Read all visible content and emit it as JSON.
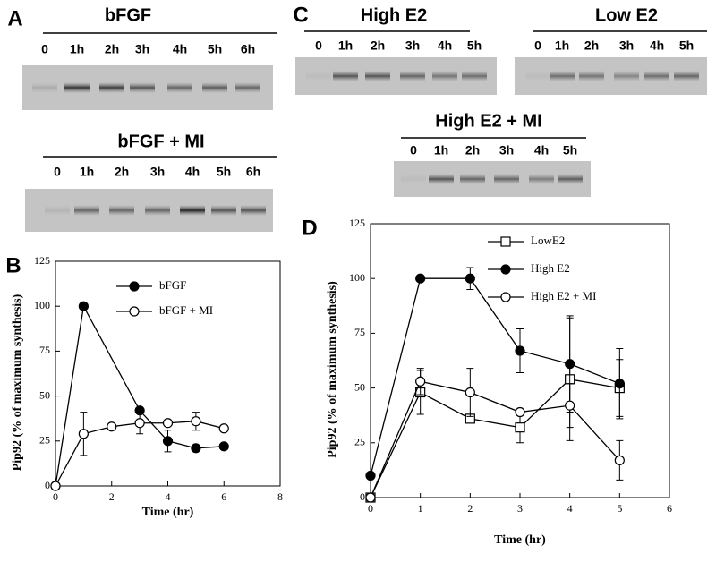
{
  "blots": [
    {
      "panel": "A",
      "groups": [
        {
          "title": "bFGF",
          "lanes": [
            "0",
            "1h",
            "2h",
            "3h",
            "4h",
            "5h",
            "6h"
          ]
        },
        {
          "title": "bFGF + MI",
          "lanes": [
            "0",
            "1h",
            "2h",
            "3h",
            "4h",
            "5h",
            "6h"
          ]
        }
      ]
    },
    {
      "panel": "C",
      "groups": [
        {
          "title": "High E2",
          "lanes": [
            "0",
            "1h",
            "2h",
            "3h",
            "4h",
            "5h"
          ]
        },
        {
          "title": "Low E2",
          "lanes": [
            "0",
            "1h",
            "2h",
            "3h",
            "4h",
            "5h"
          ]
        },
        {
          "title": "High E2 + MI",
          "lanes": [
            "0",
            "1h",
            "2h",
            "3h",
            "4h",
            "5h"
          ]
        }
      ]
    }
  ],
  "chart_data": [
    {
      "type": "line",
      "panel": "B",
      "x_label": "Time (hr)",
      "y_label": "Pip92 (% of maximum synthesis)",
      "xlim": [
        0,
        8
      ],
      "xticks": [
        0,
        2,
        4,
        6,
        8
      ],
      "ylim": [
        0,
        125
      ],
      "yticks": [
        0,
        25,
        50,
        75,
        100,
        125
      ],
      "legend": "upper right",
      "series": [
        {
          "name": "bFGF",
          "color": "#000000",
          "marker": "circle-filled",
          "x": [
            0,
            1,
            3,
            4,
            5,
            6
          ],
          "values": [
            0,
            100,
            42,
            25,
            21,
            22
          ],
          "errors": [
            null,
            null,
            null,
            6,
            null,
            null
          ]
        },
        {
          "name": "bFGF + MI",
          "color": "#000000",
          "marker": "circle-open",
          "x": [
            0,
            1,
            2,
            3,
            4,
            5,
            6
          ],
          "values": [
            0,
            29,
            33,
            35,
            35,
            36,
            32
          ],
          "errors": [
            null,
            12,
            null,
            6,
            null,
            5,
            null
          ]
        }
      ]
    },
    {
      "type": "line",
      "panel": "D",
      "x_label": "Time (hr)",
      "y_label": "Pip92 (% of maximum synthesis)",
      "xlim": [
        0,
        6
      ],
      "xticks": [
        0,
        1,
        2,
        3,
        4,
        5,
        6
      ],
      "ylim": [
        0,
        125
      ],
      "yticks": [
        0,
        25,
        50,
        75,
        100,
        125
      ],
      "legend": "upper right",
      "series": [
        {
          "name": "LowE2",
          "color": "#000000",
          "marker": "square-open",
          "x": [
            0,
            1,
            2,
            3,
            4,
            5
          ],
          "values": [
            0,
            48,
            36,
            32,
            54,
            50
          ],
          "errors": [
            null,
            10,
            null,
            7,
            28,
            13
          ]
        },
        {
          "name": "High E2",
          "color": "#000000",
          "marker": "circle-filled",
          "x": [
            0,
            1,
            2,
            3,
            4,
            5
          ],
          "values": [
            10,
            100,
            100,
            67,
            61,
            52
          ],
          "errors": [
            null,
            null,
            5,
            10,
            22,
            16
          ]
        },
        {
          "name": "High E2 + MI",
          "color": "#000000",
          "marker": "circle-open",
          "x": [
            0,
            1,
            2,
            3,
            4,
            5
          ],
          "values": [
            0,
            53,
            48,
            39,
            42,
            17
          ],
          "errors": [
            null,
            6,
            11,
            null,
            10,
            9
          ]
        }
      ]
    }
  ]
}
